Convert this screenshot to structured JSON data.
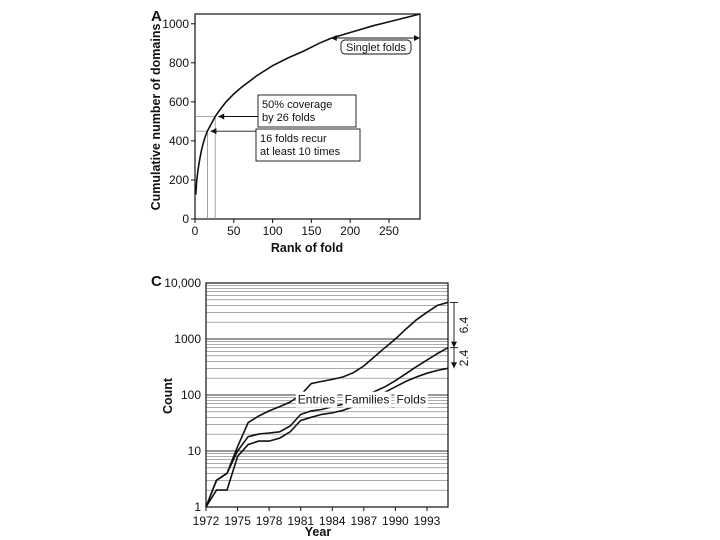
{
  "chart_data": [
    {
      "type": "line",
      "panel_label": "A",
      "xlabel": "Rank of fold",
      "ylabel": "Cumulative number of domains",
      "xlim": [
        0,
        290
      ],
      "ylim": [
        0,
        1050
      ],
      "xticks": [
        0,
        50,
        100,
        150,
        200,
        250
      ],
      "yticks": [
        0,
        200,
        400,
        600,
        800,
        1000
      ],
      "grid": false,
      "series": [
        {
          "x": [
            1,
            2,
            4,
            6,
            8,
            10,
            13,
            16,
            20,
            26,
            30,
            40,
            50,
            60,
            80,
            100,
            120,
            140,
            160,
            175,
            200,
            230,
            260,
            290
          ],
          "values": [
            125,
            190,
            255,
            305,
            345,
            380,
            420,
            450,
            480,
            525,
            548,
            600,
            640,
            675,
            735,
            785,
            825,
            860,
            900,
            925,
            955,
            990,
            1020,
            1050
          ]
        }
      ],
      "annotations": [
        {
          "text_lines": [
            "50% coverage",
            "by 26 folds"
          ],
          "x": 26,
          "y": 525
        },
        {
          "text_lines": [
            "16 folds recur",
            "at least 10 times"
          ],
          "x": 16,
          "y": 450
        },
        {
          "text": "Singlet folds",
          "x_from": 175,
          "x_to": 290
        }
      ]
    },
    {
      "type": "line",
      "panel_label": "C",
      "xlabel": "Year",
      "ylabel": "Count",
      "yscale": "log",
      "xlim": [
        1972,
        1995
      ],
      "ylim": [
        1,
        10000
      ],
      "xticks": [
        1972,
        1975,
        1978,
        1981,
        1984,
        1987,
        1990,
        1993
      ],
      "ytick_labels": [
        "1",
        "10",
        "100",
        "1000",
        "10,000"
      ],
      "grid": true,
      "series": [
        {
          "name": "Entries",
          "x": [
            1972,
            1973,
            1974,
            1975,
            1976,
            1977,
            1978,
            1979,
            1980,
            1981,
            1982,
            1983,
            1984,
            1985,
            1986,
            1987,
            1988,
            1989,
            1990,
            1991,
            1992,
            1993,
            1994,
            1995
          ],
          "values": [
            1,
            3,
            4,
            12,
            32,
            42,
            52,
            62,
            75,
            100,
            160,
            175,
            190,
            210,
            250,
            330,
            480,
            700,
            1000,
            1500,
            2200,
            3000,
            4000,
            4500
          ]
        },
        {
          "name": "Families",
          "x": [
            1972,
            1973,
            1974,
            1975,
            1976,
            1977,
            1978,
            1979,
            1980,
            1981,
            1982,
            1983,
            1984,
            1985,
            1986,
            1987,
            1988,
            1989,
            1990,
            1991,
            1992,
            1993,
            1994,
            1995
          ],
          "values": [
            1,
            3,
            4,
            10,
            18,
            20,
            21,
            22,
            28,
            45,
            52,
            55,
            62,
            68,
            80,
            95,
            115,
            140,
            180,
            240,
            320,
            420,
            550,
            700
          ]
        },
        {
          "name": "Folds",
          "x": [
            1972,
            1973,
            1974,
            1975,
            1976,
            1977,
            1978,
            1979,
            1980,
            1981,
            1982,
            1983,
            1984,
            1985,
            1986,
            1987,
            1988,
            1989,
            1990,
            1991,
            1992,
            1993,
            1994,
            1995
          ],
          "values": [
            1,
            2,
            2,
            8,
            13,
            15,
            15,
            17,
            22,
            35,
            40,
            45,
            48,
            53,
            62,
            75,
            92,
            112,
            140,
            175,
            210,
            245,
            275,
            300
          ]
        }
      ],
      "side_labels": [
        {
          "text": "6.4",
          "from": 4500,
          "to": 700
        },
        {
          "text": "2.4",
          "from": 700,
          "to": 300
        }
      ]
    }
  ]
}
